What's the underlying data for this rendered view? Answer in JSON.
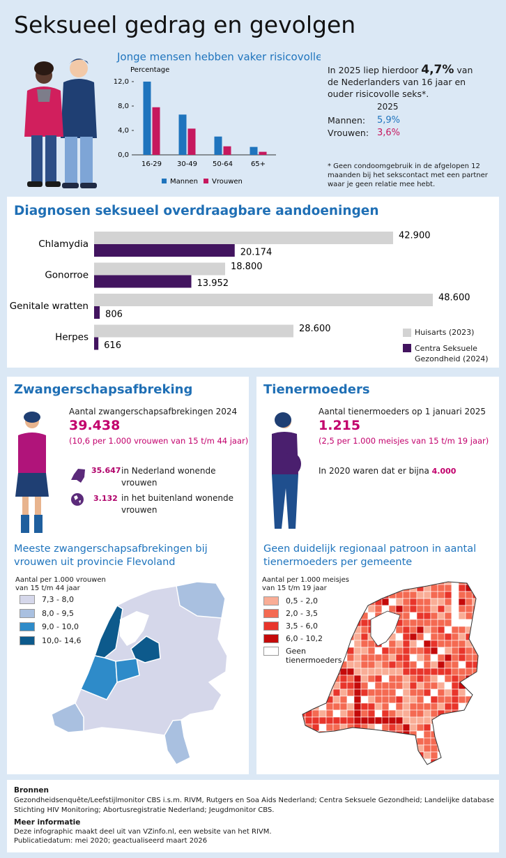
{
  "title": "Seksueel gedrag en gevolgen",
  "chart_data": [
    {
      "type": "bar",
      "title": "Jonge mensen hebben vaker risicovolle seks",
      "y_label": "Percentage",
      "categories": [
        "16-29",
        "30-49",
        "50-64",
        "65+"
      ],
      "series": [
        {
          "name": "Mannen",
          "color": "#1f74bd",
          "values": [
            12.0,
            6.6,
            3.0,
            1.3
          ]
        },
        {
          "name": "Vrouwen",
          "color": "#c6185e",
          "values": [
            7.8,
            4.3,
            1.4,
            0.5
          ]
        }
      ],
      "ylim": [
        0,
        12
      ],
      "yticks": [
        {
          "value": 0,
          "label": "0,0"
        },
        {
          "value": 4,
          "label": "4,0"
        },
        {
          "value": 8,
          "label": "8,0"
        },
        {
          "value": 12,
          "label": "12,0"
        }
      ],
      "grid": false,
      "legend": "bottom"
    },
    {
      "type": "hbar",
      "title": "Diagnosen seksueel overdraagbare aandoeningen",
      "categories": [
        "Chlamydia",
        "Gonorroe",
        "Genitale wratten",
        "Herpes"
      ],
      "series": [
        {
          "name": "Huisarts (2023)",
          "color": "#d3d3d3",
          "values": [
            42900,
            18800,
            48600,
            28600
          ],
          "value_labels": [
            "42.900",
            "18.800",
            "48.600",
            "28.600"
          ]
        },
        {
          "name": "Centra Seksuele Gezondheid (2024)",
          "color": "#42145f",
          "values": [
            20174,
            13952,
            806,
            616
          ],
          "value_labels": [
            "20.174",
            "13.952",
            "806",
            "616"
          ]
        }
      ],
      "legend": "bottom-right"
    }
  ],
  "risk": {
    "intro_before": "In 2025 liep hierdoor ",
    "intro_value": "4,7%",
    "intro_after": " van de Nederlanders van 16 jaar en ouder risicovolle seks*.",
    "year": "2025",
    "rows": [
      [
        "Mannen:",
        "5,9%"
      ],
      [
        "Vrouwen:",
        "3,6%"
      ]
    ],
    "footnote": "* Geen condoomgebruik in de afgelopen 12 maanden bij het sekscontact met een partner waar je geen relatie mee hebt."
  },
  "abortion": {
    "title": "Zwangerschapsafbreking",
    "subtitle": "Aantal zwangerschapsafbrekingen 2024",
    "total": "39.438",
    "rate": "(10,6 per 1.000 vrouwen van 15 t/m 44 jaar)",
    "breakdown": [
      {
        "value": "35.647",
        "label": "in Nederland wonende vrouwen"
      },
      {
        "value": "3.132",
        "label": "in het buitenland wonende vrouwen"
      }
    ],
    "map_title": "Meeste zwangerschapsafbrekingen bij vrouwen uit provincie Flevoland",
    "legend_title": "Aantal per 1.000 vrouwen van 15 t/m 44 jaar",
    "legend": [
      {
        "label": "7,3 -  8,0",
        "color": "#d5d7ea"
      },
      {
        "label": "8,0 -  9,5",
        "color": "#a9c0e0"
      },
      {
        "label": "9,0 - 10,0",
        "color": "#2e8bc9"
      },
      {
        "label": "10,0- 14,6",
        "color": "#0d5a8c"
      }
    ]
  },
  "teen": {
    "title": "Tienermoeders",
    "subtitle": "Aantal tienermoeders op 1 januari 2025",
    "total": "1.215",
    "rate": "(2,5 per 1.000 meisjes van 15 t/m 19 jaar)",
    "earlier_text": "In 2020 waren dat er bijna ",
    "earlier_value": "4.000",
    "map_title": "Geen duidelijk regionaal patroon in aantal tienermoeders per gemeente",
    "legend_title": "Aantal per 1.000 meisjes van 15 t/m 19 jaar",
    "legend": [
      {
        "label": "0,5 -  2,0",
        "color": "#f9ad96"
      },
      {
        "label": "2,0 -  3,5",
        "color": "#f46a52"
      },
      {
        "label": "3,5 -  6,0",
        "color": "#e8352b"
      },
      {
        "label": "6,0 - 10,2",
        "color": "#c40a0a"
      },
      {
        "label": "Geen tienermoeders",
        "color": "#ffffff"
      }
    ]
  },
  "footer": {
    "sources_title": "Bronnen",
    "sources": "Gezondheidsenquête/Leefstijlmonitor CBS i.s.m. RIVM, Rutgers en Soa Aids Nederland; Centra Seksuele Gezondheid; Landelijke database Stichting HIV Monitoring; Abortusregistratie Nederland; Jeugdmonitor CBS.",
    "info_title": "Meer informatie",
    "info": [
      "Deze infographic maakt deel uit van VZinfo.nl, een website van het RIVM.",
      "Publicatiedatum: mei 2020; geactualiseerd maart 2026"
    ]
  }
}
